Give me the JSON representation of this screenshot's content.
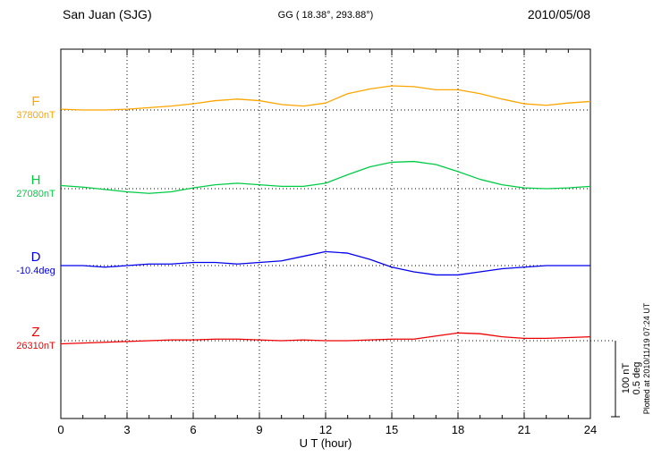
{
  "header": {
    "station": "San Juan (SJG)",
    "coords": "GG ( 18.38°, 293.88°)",
    "date": "2010/05/08"
  },
  "footer": {
    "plotted_at": "Plotted at 2010/11/19 07:24 UT"
  },
  "chart_data": {
    "type": "line",
    "title": "San Juan (SJG) magnetogram 2010/05/08",
    "xlabel": "U T (hour)",
    "xlim": [
      0,
      24
    ],
    "xticks": [
      0,
      3,
      6,
      9,
      12,
      15,
      18,
      21,
      24
    ],
    "x_hours": [
      0,
      1,
      2,
      3,
      4,
      5,
      6,
      7,
      8,
      9,
      10,
      11,
      12,
      13,
      14,
      15,
      16,
      17,
      18,
      19,
      20,
      21,
      22,
      23,
      24
    ],
    "grid": "dotted vertical at 3-hour intervals, dotted horizontal baselines per component",
    "legend_position": "left margin labels",
    "scale_bar": {
      "nT_label": "100 nT",
      "deg_label": "0.5 deg",
      "nT": 100,
      "deg": 0.5
    },
    "series": [
      {
        "name": "F",
        "unit": "nT",
        "baseline": 37800,
        "baseline_label": "37800nT",
        "color": "#FFA500",
        "values": [
          1,
          0,
          0,
          1,
          3,
          5,
          8,
          12,
          14,
          12,
          7,
          5,
          9,
          21,
          27,
          31,
          30,
          26,
          26,
          21,
          14,
          8,
          6,
          9,
          11
        ]
      },
      {
        "name": "H",
        "unit": "nT",
        "baseline": 27080,
        "baseline_label": "27080nT",
        "color": "#00CC44",
        "values": [
          4,
          2,
          -1,
          -4,
          -6,
          -4,
          1,
          5,
          7,
          5,
          3,
          3,
          7,
          18,
          28,
          34,
          35,
          31,
          22,
          12,
          5,
          1,
          0,
          1,
          3
        ]
      },
      {
        "name": "D",
        "unit": "deg",
        "baseline": -10.4,
        "baseline_label": "-10.4deg",
        "color": "#0000EE",
        "values": [
          0.0,
          0.0,
          -0.01,
          0.0,
          0.01,
          0.01,
          0.02,
          0.02,
          0.01,
          0.02,
          0.03,
          0.06,
          0.09,
          0.08,
          0.04,
          -0.01,
          -0.04,
          -0.06,
          -0.06,
          -0.04,
          -0.02,
          -0.01,
          0.0,
          0.0,
          0.0
        ]
      },
      {
        "name": "Z",
        "unit": "nT",
        "baseline": 26310,
        "baseline_label": "26310nT",
        "color": "#EE0000",
        "values": [
          -4,
          -3,
          -2,
          -1,
          0,
          1,
          1,
          2,
          2,
          1,
          0,
          1,
          0,
          0,
          1,
          2,
          2,
          6,
          10,
          9,
          5,
          3,
          3,
          4,
          5
        ]
      }
    ]
  }
}
